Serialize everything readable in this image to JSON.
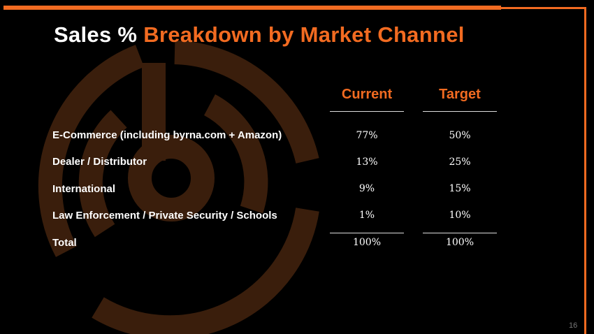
{
  "title": {
    "white": "Sales %",
    "orange": "Breakdown by Market Channel"
  },
  "columns": [
    "Current",
    "Target"
  ],
  "rows": [
    {
      "label": "E-Commerce (including byrna.com + Amazon)",
      "current": "77%",
      "target": "50%"
    },
    {
      "label": "Dealer / Distributor",
      "current": "13%",
      "target": "25%"
    },
    {
      "label": "International",
      "current": "9%",
      "target": "15%"
    },
    {
      "label": "Law Enforcement / Private Security / Schools",
      "current": "1%",
      "target": "10%"
    }
  ],
  "total": {
    "label": "Total",
    "current": "100%",
    "target": "100%"
  },
  "page_number": "16",
  "colors": {
    "accent": "#f26b21",
    "logo": "#3a1e0c"
  }
}
